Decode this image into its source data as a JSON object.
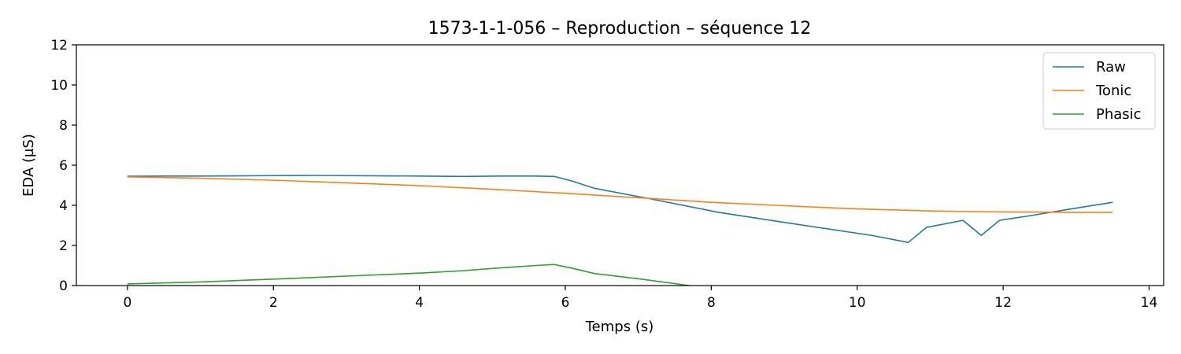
{
  "chart_data": {
    "type": "line",
    "title": "1573-1-1-056 – Reproduction – séquence 12",
    "xlabel": "Temps (s)",
    "ylabel": "EDA (µS)",
    "xlim": [
      -0.7,
      14.2
    ],
    "ylim": [
      0,
      12
    ],
    "xticks": [
      0,
      2,
      4,
      6,
      8,
      10,
      12,
      14
    ],
    "yticks": [
      0,
      2,
      4,
      6,
      8,
      10,
      12
    ],
    "grid": false,
    "legend_position": "top-right",
    "series": [
      {
        "name": "Raw",
        "color": "#1f77b4",
        "x": [
          0,
          0.5,
          1.0,
          1.5,
          2.0,
          2.5,
          3.0,
          3.5,
          4.0,
          4.6,
          5.1,
          5.6,
          5.85,
          6.1,
          6.4,
          7.2,
          8.1,
          9.0,
          10.2,
          10.7,
          10.95,
          11.45,
          11.7,
          11.95,
          12.4,
          12.9,
          13.5
        ],
        "y": [
          5.45,
          5.46,
          5.46,
          5.47,
          5.48,
          5.49,
          5.48,
          5.47,
          5.46,
          5.44,
          5.46,
          5.46,
          5.44,
          5.2,
          4.85,
          4.3,
          3.65,
          3.15,
          2.5,
          2.15,
          2.9,
          3.25,
          2.5,
          3.25,
          3.5,
          3.8,
          4.15
        ]
      },
      {
        "name": "Tonic",
        "color": "#ff7f0e",
        "x": [
          0,
          1,
          2,
          3,
          4,
          5,
          6,
          7,
          8,
          9,
          10,
          11,
          12,
          13,
          13.5
        ],
        "y": [
          5.42,
          5.35,
          5.25,
          5.12,
          4.98,
          4.8,
          4.6,
          4.38,
          4.15,
          3.98,
          3.82,
          3.72,
          3.67,
          3.65,
          3.65
        ]
      },
      {
        "name": "Phasic",
        "color": "#2ca02c",
        "x": [
          0,
          1,
          2,
          3,
          4,
          4.6,
          5.1,
          5.6,
          5.85,
          6.1,
          6.4,
          7.0,
          7.7
        ],
        "y": [
          0.08,
          0.18,
          0.32,
          0.47,
          0.62,
          0.74,
          0.88,
          1.0,
          1.05,
          0.86,
          0.6,
          0.34,
          0.0
        ]
      }
    ]
  }
}
